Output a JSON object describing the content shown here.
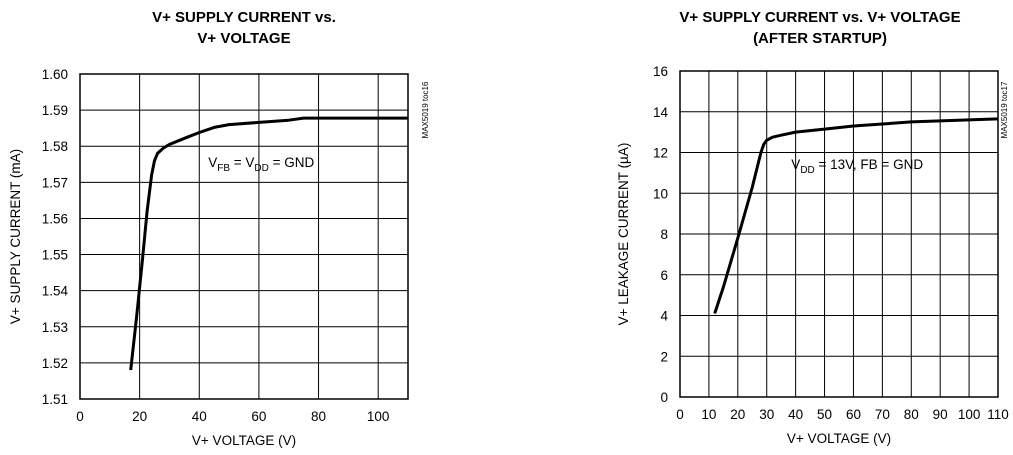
{
  "chart_data": [
    {
      "type": "line",
      "title_lines": [
        "V+ SUPPLY CURRENT vs.",
        "V+ VOLTAGE"
      ],
      "xlabel": "V+ VOLTAGE (V)",
      "ylabel": "V+ SUPPLY CURRENT (mA)",
      "xlim": [
        0,
        110
      ],
      "ylim": [
        1.51,
        1.6
      ],
      "x_ticks": [
        0,
        20,
        40,
        60,
        80,
        100
      ],
      "y_ticks": [
        1.51,
        1.52,
        1.53,
        1.54,
        1.55,
        1.56,
        1.57,
        1.58,
        1.59,
        1.6
      ],
      "x_tick_labels": [
        "0",
        "20",
        "40",
        "60",
        "80",
        "100"
      ],
      "y_tick_labels": [
        "1.51",
        "1.52",
        "1.53",
        "1.54",
        "1.55",
        "1.56",
        "1.57",
        "1.58",
        "1.59",
        "1.60"
      ],
      "grid": true,
      "annotation": {
        "parts": [
          "V",
          "FB",
          " = V",
          "DD",
          " = GND"
        ],
        "at": [
          43,
          1.5742
        ]
      },
      "tag": "MAX5019 toc16",
      "series": [
        {
          "x": [
            17,
            19,
            21,
            22.5,
            24,
            25,
            26,
            28,
            30,
            33,
            36,
            40,
            45,
            50,
            60,
            70,
            75,
            80,
            90,
            100,
            110
          ],
          "y": [
            1.518,
            1.533,
            1.549,
            1.562,
            1.572,
            1.576,
            1.578,
            1.5795,
            1.5805,
            1.5815,
            1.5825,
            1.5838,
            1.5852,
            1.586,
            1.5866,
            1.5872,
            1.5878,
            1.5878,
            1.5878,
            1.5878,
            1.5878
          ]
        }
      ]
    },
    {
      "type": "line",
      "title_lines": [
        "V+ SUPPLY CURRENT vs. V+ VOLTAGE",
        "(AFTER STARTUP)"
      ],
      "xlabel": "V+ VOLTAGE (V)",
      "ylabel": "V+ LEAKAGE CURRENT (µA)",
      "xlim": [
        0,
        110
      ],
      "ylim": [
        0,
        16
      ],
      "x_ticks": [
        0,
        10,
        20,
        30,
        40,
        50,
        60,
        70,
        80,
        90,
        100,
        110
      ],
      "y_ticks": [
        0,
        2,
        4,
        6,
        8,
        10,
        12,
        14,
        16
      ],
      "x_tick_labels": [
        "0",
        "10",
        "20",
        "30",
        "40",
        "50",
        "60",
        "70",
        "80",
        "90",
        "100",
        "110"
      ],
      "y_tick_labels": [
        "0",
        "2",
        "4",
        "6",
        "8",
        "10",
        "12",
        "14",
        "16"
      ],
      "grid": true,
      "annotation": {
        "parts": [
          "V",
          "DD",
          " = 13V, FB = GND"
        ],
        "at": [
          38.5,
          11.2
        ]
      },
      "tag": "MAX5019 toc17",
      "series": [
        {
          "x": [
            12,
            15,
            20,
            25,
            28,
            29,
            30,
            32,
            35,
            40,
            50,
            60,
            70,
            80,
            90,
            100,
            110
          ],
          "y": [
            4.1,
            5.4,
            7.8,
            10.3,
            12.0,
            12.4,
            12.6,
            12.75,
            12.85,
            13.0,
            13.15,
            13.3,
            13.4,
            13.5,
            13.55,
            13.6,
            13.65
          ]
        }
      ]
    }
  ]
}
